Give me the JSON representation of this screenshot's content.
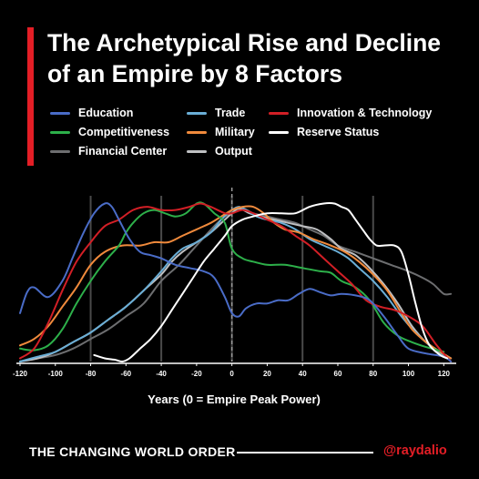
{
  "header": {
    "title_line1": "The Archetypical Rise and Decline",
    "title_line2": "of an Empire by 8 Factors"
  },
  "colors": {
    "accent": "#e41e26",
    "background": "#000000"
  },
  "footer": {
    "left_text": "THE CHANGING WORLD ORDER",
    "right_text": "@raydalio"
  },
  "chart_data": {
    "type": "line",
    "title": "The Archetypical Rise and Decline of an Empire by 8 Factors",
    "xlabel": "Years (0 = Empire Peak Power)",
    "ylabel": "",
    "xlim": [
      -120,
      125
    ],
    "ylim": [
      0,
      100
    ],
    "x_ticks": [
      -120,
      -100,
      -80,
      -60,
      -40,
      -20,
      0,
      20,
      40,
      60,
      80,
      100,
      120
    ],
    "vertical_gridlines": [
      -80,
      -40,
      0,
      40,
      80
    ],
    "peak_marker": 0,
    "legend": "top-left, three columns",
    "series": [
      {
        "name": "Education",
        "color": "#4a6cc7",
        "points": [
          [
            -120,
            30
          ],
          [
            -116,
            43
          ],
          [
            -112,
            46
          ],
          [
            -104,
            40
          ],
          [
            -96,
            50
          ],
          [
            -90,
            65
          ],
          [
            -84,
            80
          ],
          [
            -78,
            92
          ],
          [
            -72,
            98
          ],
          [
            -68,
            96
          ],
          [
            -64,
            88
          ],
          [
            -58,
            76
          ],
          [
            -52,
            68
          ],
          [
            -46,
            66
          ],
          [
            -40,
            64
          ],
          [
            -32,
            60
          ],
          [
            -24,
            58
          ],
          [
            -16,
            56
          ],
          [
            -10,
            52
          ],
          [
            -4,
            40
          ],
          [
            0,
            30
          ],
          [
            4,
            28
          ],
          [
            8,
            33
          ],
          [
            14,
            36
          ],
          [
            20,
            36
          ],
          [
            26,
            38
          ],
          [
            32,
            38
          ],
          [
            38,
            42
          ],
          [
            44,
            45
          ],
          [
            50,
            43
          ],
          [
            56,
            41
          ],
          [
            62,
            42
          ],
          [
            70,
            41
          ],
          [
            78,
            38
          ],
          [
            86,
            28
          ],
          [
            94,
            16
          ],
          [
            100,
            8
          ],
          [
            110,
            5
          ],
          [
            120,
            3
          ],
          [
            124,
            0
          ]
        ]
      },
      {
        "name": "Competitiveness",
        "color": "#2db04a",
        "points": [
          [
            -120,
            8
          ],
          [
            -112,
            7
          ],
          [
            -104,
            10
          ],
          [
            -96,
            20
          ],
          [
            -88,
            36
          ],
          [
            -80,
            50
          ],
          [
            -72,
            62
          ],
          [
            -64,
            72
          ],
          [
            -60,
            80
          ],
          [
            -56,
            86
          ],
          [
            -50,
            92
          ],
          [
            -44,
            94
          ],
          [
            -38,
            92
          ],
          [
            -32,
            90
          ],
          [
            -26,
            92
          ],
          [
            -20,
            98
          ],
          [
            -16,
            98
          ],
          [
            -10,
            92
          ],
          [
            -4,
            86
          ],
          [
            0,
            70
          ],
          [
            6,
            64
          ],
          [
            12,
            62
          ],
          [
            20,
            60
          ],
          [
            30,
            60
          ],
          [
            40,
            58
          ],
          [
            50,
            56
          ],
          [
            56,
            55
          ],
          [
            62,
            50
          ],
          [
            70,
            46
          ],
          [
            78,
            38
          ],
          [
            86,
            24
          ],
          [
            94,
            16
          ],
          [
            102,
            12
          ],
          [
            110,
            9
          ],
          [
            120,
            6
          ]
        ]
      },
      {
        "name": "Financial Center",
        "color": "#6d6e70",
        "points": [
          [
            -120,
            0
          ],
          [
            -110,
            2
          ],
          [
            -100,
            4
          ],
          [
            -90,
            8
          ],
          [
            -80,
            14
          ],
          [
            -70,
            20
          ],
          [
            -60,
            28
          ],
          [
            -50,
            36
          ],
          [
            -40,
            50
          ],
          [
            -30,
            60
          ],
          [
            -20,
            72
          ],
          [
            -10,
            84
          ],
          [
            -4,
            90
          ],
          [
            0,
            92
          ],
          [
            6,
            95
          ],
          [
            12,
            92
          ],
          [
            20,
            90
          ],
          [
            28,
            88
          ],
          [
            36,
            86
          ],
          [
            44,
            82
          ],
          [
            52,
            78
          ],
          [
            60,
            72
          ],
          [
            70,
            68
          ],
          [
            80,
            64
          ],
          [
            90,
            60
          ],
          [
            100,
            56
          ],
          [
            108,
            52
          ],
          [
            114,
            48
          ],
          [
            120,
            42
          ],
          [
            124,
            42
          ]
        ]
      },
      {
        "name": "Trade",
        "color": "#6aaed6",
        "points": [
          [
            -120,
            0
          ],
          [
            -110,
            3
          ],
          [
            -100,
            6
          ],
          [
            -90,
            12
          ],
          [
            -80,
            18
          ],
          [
            -70,
            26
          ],
          [
            -60,
            34
          ],
          [
            -50,
            44
          ],
          [
            -40,
            56
          ],
          [
            -34,
            64
          ],
          [
            -28,
            70
          ],
          [
            -20,
            74
          ],
          [
            -12,
            80
          ],
          [
            -6,
            88
          ],
          [
            0,
            94
          ],
          [
            4,
            96
          ],
          [
            8,
            94
          ],
          [
            14,
            90
          ],
          [
            20,
            88
          ],
          [
            28,
            86
          ],
          [
            36,
            82
          ],
          [
            44,
            76
          ],
          [
            52,
            72
          ],
          [
            60,
            68
          ],
          [
            66,
            64
          ],
          [
            72,
            58
          ],
          [
            80,
            50
          ],
          [
            88,
            40
          ],
          [
            96,
            28
          ],
          [
            104,
            18
          ],
          [
            112,
            10
          ],
          [
            120,
            4
          ],
          [
            124,
            2
          ]
        ]
      },
      {
        "name": "Military",
        "color": "#f08a3c",
        "points": [
          [
            -120,
            10
          ],
          [
            -112,
            14
          ],
          [
            -104,
            22
          ],
          [
            -96,
            34
          ],
          [
            -88,
            46
          ],
          [
            -80,
            60
          ],
          [
            -72,
            68
          ],
          [
            -62,
            72
          ],
          [
            -52,
            72
          ],
          [
            -44,
            74
          ],
          [
            -36,
            74
          ],
          [
            -28,
            78
          ],
          [
            -20,
            82
          ],
          [
            -12,
            86
          ],
          [
            -6,
            90
          ],
          [
            0,
            94
          ],
          [
            6,
            96
          ],
          [
            12,
            96
          ],
          [
            18,
            92
          ],
          [
            24,
            86
          ],
          [
            30,
            82
          ],
          [
            38,
            80
          ],
          [
            46,
            76
          ],
          [
            56,
            72
          ],
          [
            64,
            68
          ],
          [
            72,
            62
          ],
          [
            80,
            54
          ],
          [
            88,
            44
          ],
          [
            96,
            30
          ],
          [
            102,
            20
          ],
          [
            110,
            12
          ],
          [
            118,
            6
          ],
          [
            124,
            2
          ]
        ]
      },
      {
        "name": "Output",
        "color": "#bfc0c2",
        "points": [
          [
            -120,
            0
          ],
          [
            -110,
            2
          ],
          [
            -100,
            6
          ],
          [
            -90,
            12
          ],
          [
            -80,
            18
          ],
          [
            -70,
            26
          ],
          [
            -60,
            34
          ],
          [
            -50,
            44
          ],
          [
            -40,
            54
          ],
          [
            -34,
            62
          ],
          [
            -28,
            68
          ],
          [
            -20,
            74
          ],
          [
            -12,
            80
          ],
          [
            -4,
            88
          ],
          [
            0,
            92
          ],
          [
            4,
            95
          ],
          [
            10,
            92
          ],
          [
            16,
            90
          ],
          [
            24,
            88
          ],
          [
            32,
            86
          ],
          [
            40,
            84
          ],
          [
            48,
            82
          ],
          [
            56,
            76
          ],
          [
            62,
            70
          ],
          [
            70,
            66
          ],
          [
            78,
            58
          ],
          [
            86,
            48
          ],
          [
            94,
            36
          ],
          [
            102,
            22
          ],
          [
            110,
            12
          ],
          [
            118,
            6
          ],
          [
            124,
            2
          ]
        ]
      },
      {
        "name": "Innovation & Technology",
        "color": "#d21f26",
        "points": [
          [
            -120,
            2
          ],
          [
            -112,
            8
          ],
          [
            -104,
            24
          ],
          [
            -96,
            44
          ],
          [
            -88,
            62
          ],
          [
            -80,
            74
          ],
          [
            -72,
            84
          ],
          [
            -64,
            88
          ],
          [
            -56,
            94
          ],
          [
            -48,
            96
          ],
          [
            -40,
            94
          ],
          [
            -32,
            94
          ],
          [
            -24,
            96
          ],
          [
            -18,
            98
          ],
          [
            -12,
            96
          ],
          [
            -4,
            92
          ],
          [
            0,
            92
          ],
          [
            6,
            94
          ],
          [
            12,
            92
          ],
          [
            20,
            88
          ],
          [
            28,
            84
          ],
          [
            36,
            78
          ],
          [
            44,
            72
          ],
          [
            52,
            64
          ],
          [
            60,
            56
          ],
          [
            68,
            48
          ],
          [
            76,
            38
          ],
          [
            84,
            34
          ],
          [
            92,
            32
          ],
          [
            100,
            28
          ],
          [
            108,
            22
          ],
          [
            116,
            10
          ],
          [
            124,
            0
          ]
        ]
      },
      {
        "name": "Reserve Status",
        "color": "#ffffff",
        "points": [
          [
            -78,
            4
          ],
          [
            -72,
            2
          ],
          [
            -66,
            1
          ],
          [
            -62,
            0
          ],
          [
            -58,
            2
          ],
          [
            -52,
            8
          ],
          [
            -46,
            14
          ],
          [
            -40,
            22
          ],
          [
            -34,
            32
          ],
          [
            -28,
            42
          ],
          [
            -22,
            52
          ],
          [
            -16,
            62
          ],
          [
            -10,
            70
          ],
          [
            -4,
            78
          ],
          [
            0,
            84
          ],
          [
            6,
            88
          ],
          [
            12,
            90
          ],
          [
            20,
            92
          ],
          [
            28,
            92
          ],
          [
            36,
            92
          ],
          [
            44,
            96
          ],
          [
            52,
            98
          ],
          [
            58,
            98
          ],
          [
            62,
            96
          ],
          [
            66,
            94
          ],
          [
            70,
            88
          ],
          [
            74,
            82
          ],
          [
            78,
            76
          ],
          [
            82,
            72
          ],
          [
            86,
            72
          ],
          [
            92,
            72
          ],
          [
            96,
            68
          ],
          [
            100,
            54
          ],
          [
            104,
            36
          ],
          [
            108,
            20
          ],
          [
            112,
            10
          ],
          [
            118,
            4
          ],
          [
            122,
            2
          ]
        ]
      }
    ]
  }
}
